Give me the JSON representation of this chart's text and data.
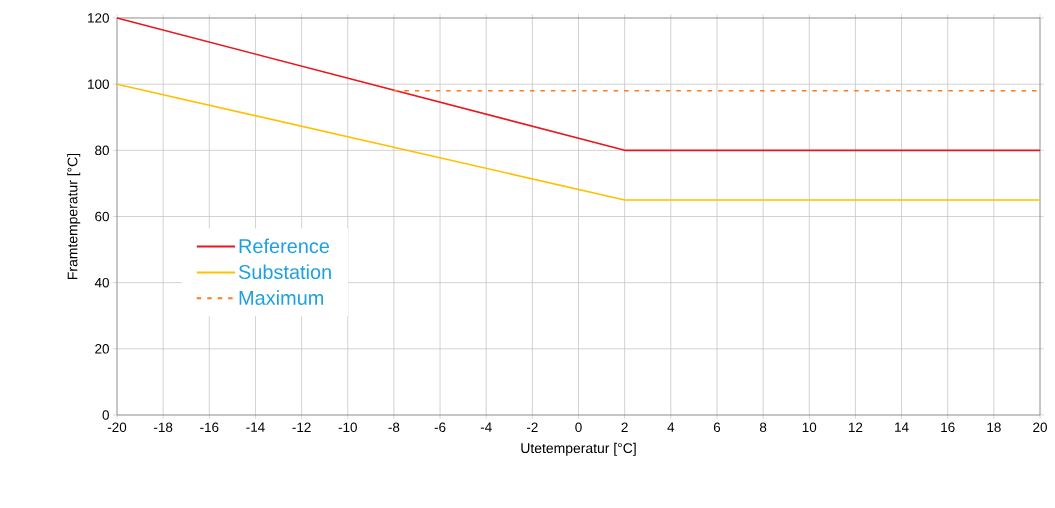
{
  "chart_data": {
    "type": "line",
    "xlabel": "Utetemperatur [°C]",
    "ylabel": "Framtemperatur [°C]",
    "series": [
      {
        "name": "Reference",
        "color": "#e8171e",
        "x": [
          -20,
          2,
          20
        ],
        "values": [
          120,
          80,
          80
        ],
        "line_style": "solid"
      },
      {
        "name": "Substation",
        "color": "#ffc000",
        "x": [
          -20,
          2,
          20
        ],
        "values": [
          100,
          65,
          65
        ],
        "line_style": "solid"
      },
      {
        "name": "Maximum",
        "color": "#ff7a1a",
        "x": [
          -8,
          20
        ],
        "values": [
          98,
          98
        ],
        "line_style": "dashed"
      }
    ],
    "xlim": [
      -20,
      20
    ],
    "ylim": [
      0,
      120
    ],
    "xticks": [
      -20,
      -18,
      -16,
      -14,
      -12,
      -10,
      -8,
      -6,
      -4,
      -2,
      0,
      2,
      4,
      6,
      8,
      10,
      12,
      14,
      16,
      18,
      20
    ],
    "yticks": [
      0,
      20,
      40,
      60,
      80,
      100,
      120
    ],
    "grid": true,
    "legend": "left",
    "marker": "none"
  }
}
